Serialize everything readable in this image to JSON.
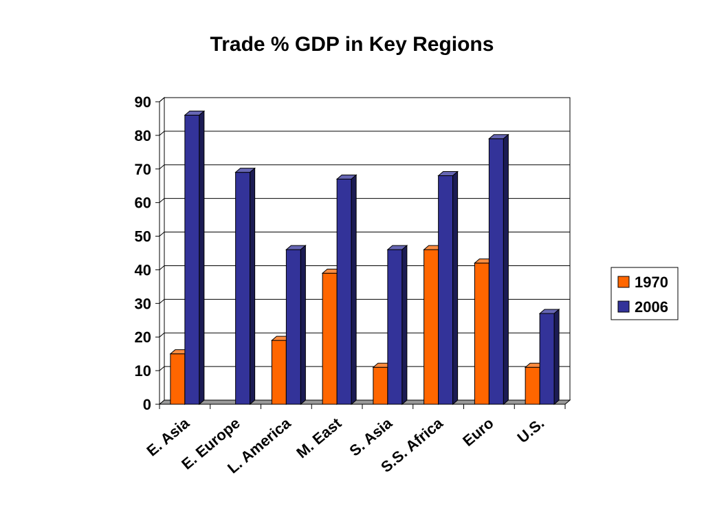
{
  "chart_data": {
    "type": "bar",
    "title": "Trade % GDP in Key Regions",
    "xlabel": "",
    "ylabel": "",
    "categories": [
      "E. Asia",
      "E. Europe",
      "L. America",
      "M. East",
      "S. Asia",
      "S.S. Africa",
      "Euro",
      "U.S."
    ],
    "series": [
      {
        "name": "1970",
        "values": [
          15,
          null,
          19,
          39,
          11,
          46,
          42,
          11
        ],
        "color": "#FF6600"
      },
      {
        "name": "2006",
        "values": [
          86,
          69,
          46,
          67,
          46,
          68,
          79,
          27
        ],
        "color": "#333399"
      }
    ],
    "ylim": [
      0,
      90
    ],
    "yticks": [
      0,
      10,
      20,
      30,
      40,
      50,
      60,
      70,
      80,
      90
    ],
    "grid": true,
    "style": "3d-column",
    "legend_position": "right"
  },
  "colors": {
    "series_1970": "#FF6600",
    "series_2006": "#333399",
    "floor": "#999999",
    "grid": "#000000"
  }
}
